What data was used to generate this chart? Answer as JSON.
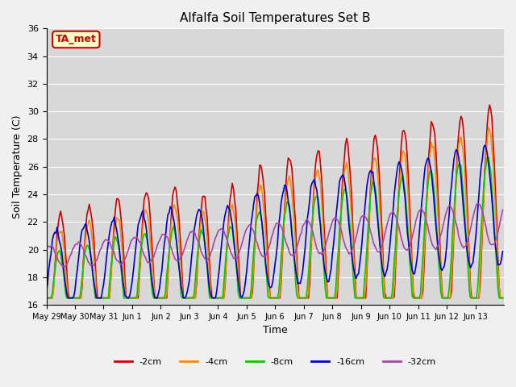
{
  "title": "Alfalfa Soil Temperatures Set B",
  "ylabel": "Soil Temperature (C)",
  "xlabel": "Time",
  "ylim": [
    16,
    36
  ],
  "fig_bg_color": "#f0f0f0",
  "plot_bg_color": "#d8d8d8",
  "series_colors": {
    "-2cm": "#cc0000",
    "-4cm": "#ff8800",
    "-8cm": "#00cc00",
    "-16cm": "#0000cc",
    "-32cm": "#aa44aa"
  },
  "annotation": "TA_met",
  "annotation_color": "#cc0000",
  "annotation_bg": "#ffffcc",
  "xtick_labels": [
    "May 29",
    "May 30",
    "May 31",
    "Jun 1",
    "Jun 2",
    "Jun 3",
    "Jun 4",
    "Jun 5",
    "Jun 6",
    "Jun 7",
    "Jun 8",
    "Jun 9",
    "Jun 10",
    "Jun 11",
    "Jun 12",
    "Jun 13"
  ],
  "ytick_labels": [
    16,
    18,
    20,
    22,
    24,
    26,
    28,
    30,
    32,
    34,
    36
  ],
  "n_days": 16,
  "n_per_day": 24
}
